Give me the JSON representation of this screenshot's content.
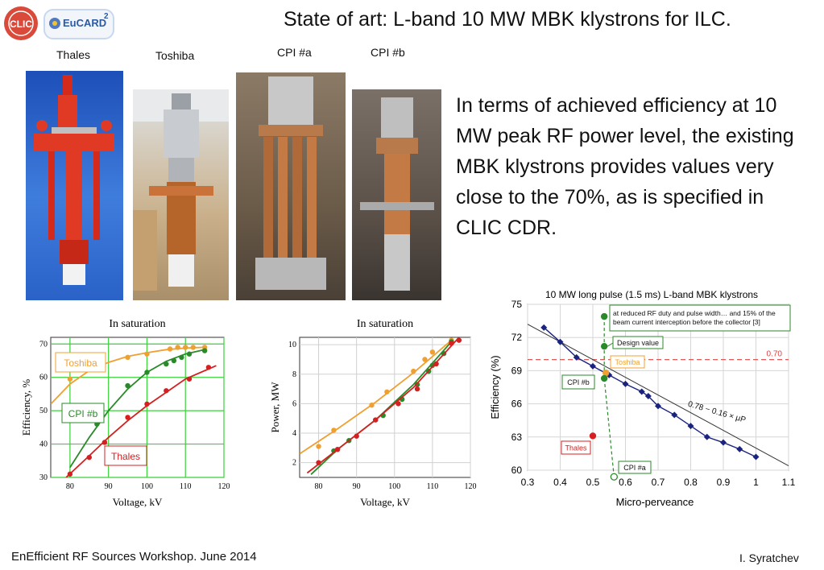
{
  "header": {
    "title": "State of art: L-band 10 MW MBK klystrons for ILC.",
    "logo_clic": "CLIC",
    "logo_eucard": "EuCARD",
    "logo_eucard_sup": "2"
  },
  "photos": [
    {
      "label": "Thales"
    },
    {
      "label": "Toshiba"
    },
    {
      "label": "CPI #a"
    },
    {
      "label": "CPI #b"
    }
  ],
  "body_text": "In terms of achieved efficiency at 10 MW peak RF power level, the existing MBK klystrons provides values very close to the 70%, as is specified in CLIC CDR.",
  "footer": {
    "left": "EnEfficient RF Sources Workshop. June 2014",
    "right": "I. Syratchev"
  },
  "colors": {
    "thales": "#d42020",
    "toshiba": "#f0a030",
    "cpi": "#2a8a2a",
    "trend": "#1a237e",
    "ref_line": "#e04040"
  },
  "chart_data": [
    {
      "type": "line",
      "title": "In saturation",
      "xlabel": "Voltage, kV",
      "ylabel": "Efficiency, %",
      "xlim": [
        75,
        120
      ],
      "ylim": [
        30,
        72
      ],
      "xticks": [
        "80",
        "90",
        "100",
        "110",
        "120"
      ],
      "yticks": [
        "30",
        "40",
        "50",
        "60",
        "70"
      ],
      "grid": true,
      "series": [
        {
          "name": "Toshiba",
          "color": "#f0a030",
          "points": [
            [
              80,
              59.5
            ],
            [
              86,
              63
            ],
            [
              95,
              66
            ],
            [
              100,
              67
            ],
            [
              106,
              68.5
            ],
            [
              108,
              69
            ],
            [
              110,
              69
            ],
            [
              112,
              69
            ],
            [
              115,
              69
            ]
          ],
          "curve": [
            [
              75,
              52
            ],
            [
              80,
              58
            ],
            [
              85,
              62
            ],
            [
              90,
              64.5
            ],
            [
              95,
              66.3
            ],
            [
              100,
              67.4
            ],
            [
              105,
              68.3
            ],
            [
              110,
              68.8
            ],
            [
              115,
              69
            ]
          ]
        },
        {
          "name": "CPI #b",
          "color": "#2a8a2a",
          "points": [
            [
              87,
              46
            ],
            [
              95,
              57.5
            ],
            [
              100,
              61.5
            ],
            [
              105,
              64
            ],
            [
              107,
              65
            ],
            [
              109,
              66
            ],
            [
              111,
              67
            ],
            [
              115,
              68
            ]
          ],
          "curve": [
            [
              80,
              33
            ],
            [
              85,
              42
            ],
            [
              90,
              50
            ],
            [
              95,
              56.5
            ],
            [
              100,
              61.5
            ],
            [
              105,
              64.8
            ],
            [
              110,
              67
            ],
            [
              115,
              68.3
            ]
          ]
        },
        {
          "name": "Thales",
          "color": "#d42020",
          "points": [
            [
              80,
              31
            ],
            [
              85,
              36
            ],
            [
              89,
              40.5
            ],
            [
              95,
              48
            ],
            [
              100,
              52
            ],
            [
              105,
              56
            ],
            [
              111,
              59.5
            ],
            [
              116,
              63
            ]
          ],
          "curve": [
            [
              79,
              30
            ],
            [
              85,
              36.5
            ],
            [
              90,
              42
            ],
            [
              95,
              47
            ],
            [
              100,
              51.5
            ],
            [
              105,
              55.5
            ],
            [
              110,
              59.5
            ],
            [
              118,
              63.5
            ]
          ]
        }
      ]
    },
    {
      "type": "line",
      "title": "In saturation",
      "xlabel": "Voltage, kV",
      "ylabel": "Power, MW",
      "xlim": [
        75,
        120
      ],
      "ylim": [
        1,
        10.5
      ],
      "xticks": [
        "80",
        "90",
        "100",
        "110",
        "120"
      ],
      "yticks": [
        "2",
        "4",
        "6",
        "8",
        "10"
      ],
      "grid": true,
      "series": [
        {
          "name": "Toshiba",
          "color": "#f0a030",
          "points": [
            [
              80,
              3.1
            ],
            [
              84,
              4.2
            ],
            [
              94,
              5.9
            ],
            [
              98,
              6.8
            ],
            [
              105,
              8.2
            ],
            [
              108,
              9
            ],
            [
              110,
              9.5
            ],
            [
              115,
              10.3
            ]
          ],
          "curve": [
            [
              75,
              2.6
            ],
            [
              85,
              4.3
            ],
            [
              95,
              6.1
            ],
            [
              105,
              8.1
            ],
            [
              115,
              10.3
            ]
          ]
        },
        {
          "name": "CPI #b",
          "color": "#2a8a2a",
          "points": [
            [
              84,
              2.8
            ],
            [
              88,
              3.5
            ],
            [
              97,
              5.2
            ],
            [
              102,
              6.3
            ],
            [
              106,
              7.3
            ],
            [
              109,
              8.2
            ],
            [
              110,
              8.6
            ],
            [
              113,
              9.4
            ],
            [
              115,
              10.2
            ]
          ],
          "curve": [
            [
              78,
              1.2
            ],
            [
              85,
              2.9
            ],
            [
              95,
              4.9
            ],
            [
              105,
              7.3
            ],
            [
              115,
              10.2
            ]
          ]
        },
        {
          "name": "Thales",
          "color": "#d42020",
          "points": [
            [
              80,
              2
            ],
            [
              85,
              2.9
            ],
            [
              90,
              3.8
            ],
            [
              95,
              4.9
            ],
            [
              101,
              6
            ],
            [
              106,
              7
            ],
            [
              111,
              8.7
            ],
            [
              115,
              10.1
            ],
            [
              117,
              10.3
            ]
          ],
          "curve": [
            [
              77,
              1.3
            ],
            [
              85,
              2.9
            ],
            [
              95,
              4.9
            ],
            [
              105,
              7.1
            ],
            [
              117,
              10.5
            ]
          ]
        }
      ]
    },
    {
      "type": "scatter",
      "title": "10 MW long pulse (1.5 ms) L-band MBK klystrons",
      "xlabel": "Micro-perveance",
      "ylabel": "Efficiency (%)",
      "xlim": [
        0.3,
        1.1
      ],
      "ylim": [
        60,
        75
      ],
      "xticks": [
        "0.3",
        "0.4",
        "0.5",
        "0.6",
        "0.7",
        "0.8",
        "0.9",
        "1",
        "1.1"
      ],
      "yticks": [
        "60",
        "63",
        "66",
        "69",
        "72",
        "75"
      ],
      "grid": true,
      "reference_line": {
        "value": 70,
        "label": "0.70"
      },
      "fit_label": "0.78 − 0.16 × μP",
      "fit": {
        "intercept": 78,
        "slope": -16
      },
      "trend_points": [
        [
          0.35,
          72.9
        ],
        [
          0.4,
          71.6
        ],
        [
          0.45,
          70.2
        ],
        [
          0.5,
          69.4
        ],
        [
          0.55,
          68.6
        ],
        [
          0.6,
          67.8
        ],
        [
          0.65,
          67.1
        ],
        [
          0.67,
          66.7
        ],
        [
          0.7,
          65.8
        ],
        [
          0.75,
          65
        ],
        [
          0.8,
          64
        ],
        [
          0.85,
          63
        ],
        [
          0.9,
          62.5
        ],
        [
          0.95,
          61.9
        ],
        [
          1,
          61.2
        ]
      ],
      "markers": [
        {
          "name": "Thales",
          "x": 0.5,
          "y": 63.1,
          "color": "#d42020"
        },
        {
          "name": "Toshiba",
          "x": 0.54,
          "y": 68.8,
          "color": "#f0a030"
        },
        {
          "name": "CPI #b",
          "x": 0.535,
          "y": 68.3,
          "color": "#2a8a2a"
        },
        {
          "name": "CPI #a",
          "x": 0.565,
          "y": 59.4,
          "color": "#2a8a2a",
          "hollow": true
        },
        {
          "name": "Design value",
          "x": 0.535,
          "y": 71.2,
          "color": "#2a8a2a"
        },
        {
          "name": "reduced",
          "x": 0.535,
          "y": 73.9,
          "color": "#2a8a2a"
        }
      ],
      "annotations": {
        "reduced": "at reduced RF duty and pulse width… and 15% of the beam current interception before the collector [3]",
        "design": "Design value",
        "toshiba": "Toshiba",
        "cpib": "CPI #b",
        "thales": "Thales",
        "cpia": "CPI #a"
      }
    }
  ]
}
